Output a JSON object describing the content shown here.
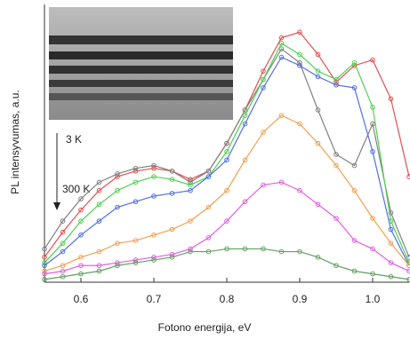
{
  "chart_data": {
    "type": "line",
    "xlabel": "Fotono energija, eV",
    "ylabel": "PL intensyvumas, a.u.",
    "annotations": [
      "3 K",
      "300 K"
    ],
    "x": [
      0.55,
      0.575,
      0.6,
      0.625,
      0.65,
      0.675,
      0.7,
      0.725,
      0.75,
      0.775,
      0.8,
      0.825,
      0.85,
      0.875,
      0.9,
      0.925,
      0.95,
      0.975,
      1.0,
      1.025,
      1.05
    ],
    "xlim": [
      0.55,
      1.05
    ],
    "xticks": [
      0.6,
      0.7,
      0.8,
      0.9,
      {
        "value": 1,
        "label": "1.0"
      }
    ],
    "ylim": [
      0,
      100
    ],
    "series": [
      {
        "color": "#e05050",
        "values": [
          9,
          18,
          26,
          33,
          38,
          40,
          41,
          40,
          37,
          40,
          50,
          62,
          76,
          88,
          90,
          82,
          72,
          78,
          80,
          66,
          38
        ]
      },
      {
        "color": "#808080",
        "values": [
          12,
          22,
          30,
          36,
          39,
          41,
          42,
          40,
          36,
          40,
          50,
          62,
          73,
          84,
          79,
          62,
          46,
          42,
          57,
          25,
          9
        ]
      },
      {
        "color": "#50d050",
        "values": [
          7,
          14,
          22,
          28,
          33,
          36,
          38,
          37,
          35,
          38,
          47,
          60,
          73,
          86,
          82,
          76,
          73,
          79,
          63,
          22,
          7
        ]
      },
      {
        "color": "#5070e0",
        "values": [
          6,
          11,
          17,
          22,
          27,
          29,
          31,
          32,
          33,
          38,
          44,
          57,
          70,
          81,
          78,
          74,
          71,
          70,
          47,
          19,
          6
        ]
      },
      {
        "color": "#f0a050",
        "values": [
          4,
          6,
          9,
          11,
          14,
          15,
          17,
          19,
          22,
          27,
          33,
          44,
          54,
          60,
          57,
          50,
          42,
          33,
          23,
          14,
          6
        ]
      },
      {
        "color": "#e060e0",
        "values": [
          3,
          4,
          6,
          6,
          7,
          8,
          9,
          10,
          12,
          16,
          22,
          29,
          35,
          36,
          33,
          28,
          23,
          15,
          12,
          7,
          4
        ]
      },
      {
        "color": "#60a060",
        "values": [
          1,
          2,
          3,
          4,
          6,
          7,
          8,
          9,
          11,
          11,
          12,
          12,
          12,
          11,
          11,
          9,
          6,
          4,
          3,
          2,
          1
        ]
      }
    ]
  }
}
